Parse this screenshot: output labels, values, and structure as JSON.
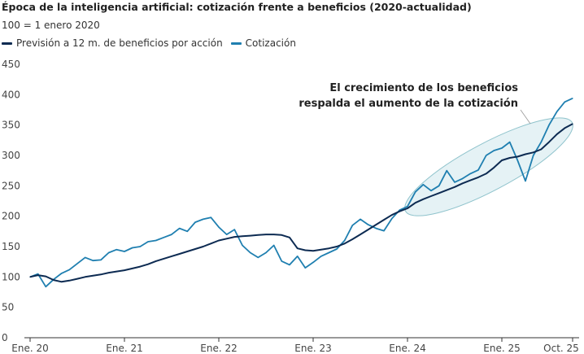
{
  "chart_data": {
    "type": "line",
    "title": "Época de la inteligencia artificial: cotización frente a beneficios (2020-actualidad)",
    "subtitle": "100 = 1 enero 2020",
    "xlabel": "",
    "ylabel": "",
    "ylim": [
      0,
      450
    ],
    "yticks": [
      0,
      50,
      100,
      150,
      200,
      250,
      300,
      350,
      400,
      450
    ],
    "xtick_labels": [
      "Ene. 20",
      "Ene. 21",
      "Ene. 22",
      "Ene. 23",
      "Ene. 24",
      "Ene. 25",
      "Oct. 25"
    ],
    "xtick_dates": [
      "2020-01",
      "2021-01",
      "2022-01",
      "2023-01",
      "2024-01",
      "2025-01",
      "2025-10"
    ],
    "grid": false,
    "legend_position": "top-left",
    "x": [
      "2020-01",
      "2020-02",
      "2020-03",
      "2020-04",
      "2020-05",
      "2020-06",
      "2020-07",
      "2020-08",
      "2020-09",
      "2020-10",
      "2020-11",
      "2020-12",
      "2021-01",
      "2021-02",
      "2021-03",
      "2021-04",
      "2021-05",
      "2021-06",
      "2021-07",
      "2021-08",
      "2021-09",
      "2021-10",
      "2021-11",
      "2021-12",
      "2022-01",
      "2022-02",
      "2022-03",
      "2022-04",
      "2022-05",
      "2022-06",
      "2022-07",
      "2022-08",
      "2022-09",
      "2022-10",
      "2022-11",
      "2022-12",
      "2023-01",
      "2023-02",
      "2023-03",
      "2023-04",
      "2023-05",
      "2023-06",
      "2023-07",
      "2023-08",
      "2023-09",
      "2023-10",
      "2023-11",
      "2023-12",
      "2024-01",
      "2024-02",
      "2024-03",
      "2024-04",
      "2024-05",
      "2024-06",
      "2024-07",
      "2024-08",
      "2024-09",
      "2024-10",
      "2024-11",
      "2024-12",
      "2025-01",
      "2025-02",
      "2025-03",
      "2025-04",
      "2025-05",
      "2025-06",
      "2025-07",
      "2025-08",
      "2025-09",
      "2025-10"
    ],
    "series": [
      {
        "name": "Previsión a 12 m. de beneficios por acción",
        "color": "#0d2b52",
        "values": [
          100,
          103,
          101,
          95,
          92,
          94,
          97,
          100,
          102,
          104,
          107,
          109,
          111,
          114,
          117,
          121,
          126,
          130,
          134,
          138,
          142,
          146,
          150,
          155,
          160,
          163,
          166,
          167,
          168,
          169,
          170,
          170,
          169,
          165,
          147,
          144,
          143,
          145,
          147,
          150,
          155,
          162,
          170,
          178,
          186,
          194,
          202,
          208,
          213,
          222,
          228,
          233,
          238,
          243,
          248,
          254,
          259,
          264,
          270,
          280,
          292,
          296,
          298,
          302,
          305,
          310,
          322,
          335,
          345,
          352
        ]
      },
      {
        "name": "Cotización",
        "color": "#1f7fb0",
        "values": [
          100,
          105,
          84,
          96,
          106,
          112,
          122,
          132,
          127,
          128,
          140,
          145,
          142,
          148,
          150,
          158,
          160,
          165,
          170,
          180,
          175,
          190,
          195,
          198,
          182,
          170,
          178,
          152,
          140,
          132,
          140,
          152,
          126,
          120,
          134,
          115,
          124,
          134,
          140,
          146,
          160,
          185,
          195,
          186,
          180,
          176,
          196,
          210,
          216,
          240,
          252,
          242,
          250,
          275,
          256,
          262,
          270,
          276,
          300,
          308,
          312,
          322,
          292,
          258,
          300,
          322,
          350,
          372,
          388,
          394
        ]
      }
    ],
    "annotation": "El crecimiento de los beneficios respalda el aumento de la cotización",
    "annotation_lines": [
      "El crecimiento de los beneficios",
      "respalda el aumento de la cotización"
    ]
  }
}
